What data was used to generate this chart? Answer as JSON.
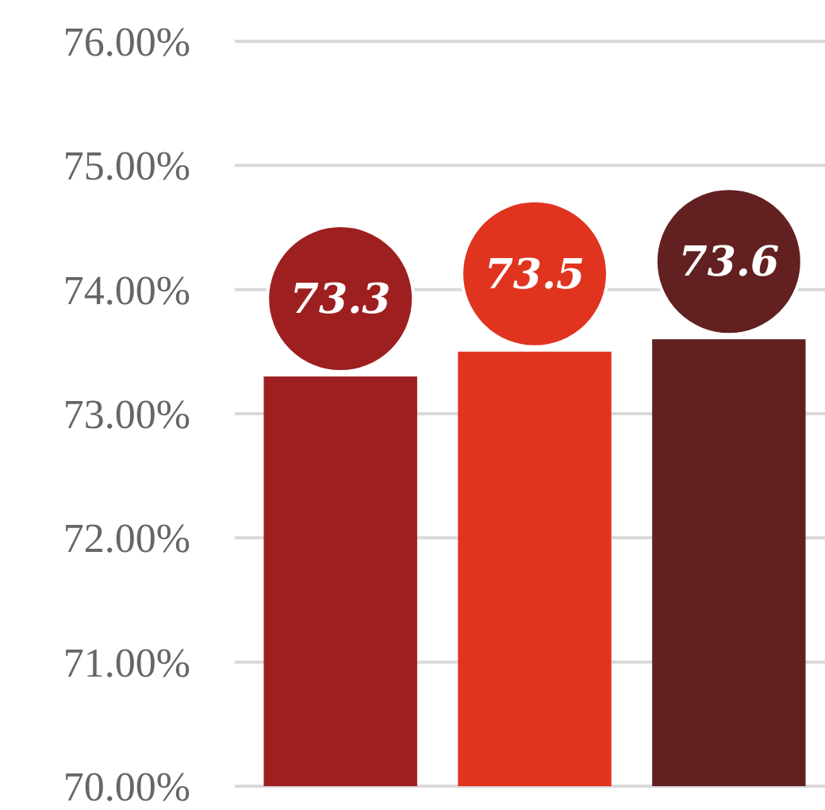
{
  "chart_data": {
    "type": "bar",
    "categories": [
      null,
      null,
      null
    ],
    "values": [
      73.3,
      73.5,
      73.6
    ],
    "colors": [
      "#9e1f20",
      "#e0341f",
      "#622020"
    ],
    "ylim": [
      70,
      76
    ],
    "yticks": [
      {
        "value": 70,
        "label": "70.00%"
      },
      {
        "value": 71,
        "label": "71.00%"
      },
      {
        "value": 72,
        "label": "72.00%"
      },
      {
        "value": 73,
        "label": "73.00%"
      },
      {
        "value": 74,
        "label": "74.00%"
      },
      {
        "value": 75,
        "label": "75.00%"
      },
      {
        "value": 76,
        "label": "76.00%"
      }
    ],
    "grid": "y",
    "data_labels": true
  }
}
